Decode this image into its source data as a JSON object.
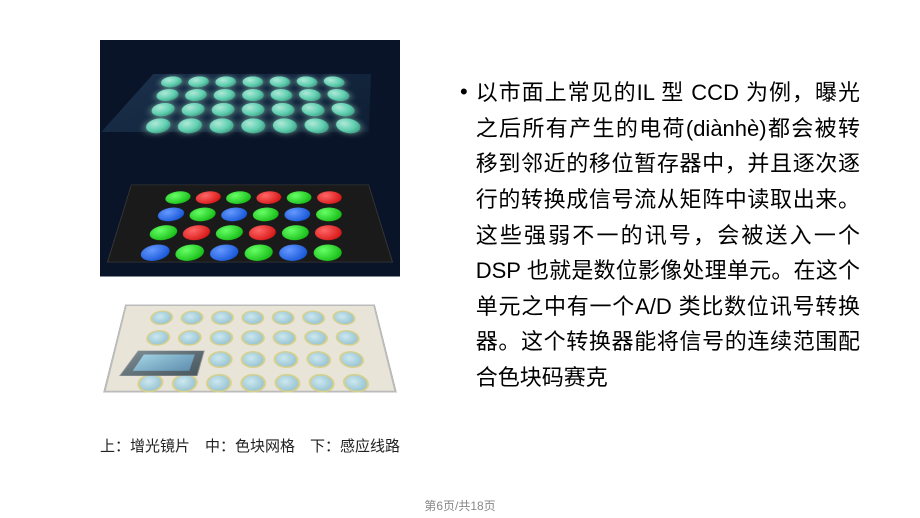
{
  "slide": {
    "background_color": "#ffffff",
    "content_font_family": "Microsoft YaHei",
    "figure": {
      "caption": "上：增光镜片　中：色块网格　下：感应线路",
      "caption_fontsize": 15,
      "caption_color": "#222222",
      "layers": {
        "top": {
          "name": "增光镜片",
          "base_color": "#1a2f4a",
          "lens_color_light": "#b0e8d8",
          "lens_color_dark": "#2a7560",
          "grid": {
            "cols": 7,
            "rows": 4
          }
        },
        "middle": {
          "name": "色块网格",
          "base_color": "#1a1a1a",
          "grid": {
            "cols": 6,
            "rows": 4
          },
          "pattern": "bayer",
          "colors": {
            "r": "#cc0000",
            "g": "#00aa00",
            "b": "#0044cc"
          }
        },
        "bottom": {
          "name": "感应线路",
          "base_color": "#e8e4d8",
          "cell_fill": "#88b8c8",
          "cell_border": "#d8d088",
          "grid": {
            "cols": 7,
            "rows": 4
          },
          "chip_color": "#4a5860"
        }
      }
    },
    "bullet_glyph": "•",
    "body_text": "以市面上常见的IL 型 CCD 为例，曝光之后所有产生的电荷(diànhè)都会被转移到邻近的移位暂存器中，并且逐次逐行的转换成信号流从矩阵中读取出来。这些强弱不一的讯号，会被送入一个 DSP 也就是数位影像处理单元。在这个单元之中有一个A/D 类比数位讯号转换器。这个转换器能将信号的连续范围配合色块码赛克",
    "body_fontsize": 22,
    "body_line_height": 1.62,
    "body_color": "#000000"
  },
  "footer": {
    "page_label": "第6页/共18页",
    "fontsize": 12,
    "color": "#888888"
  }
}
